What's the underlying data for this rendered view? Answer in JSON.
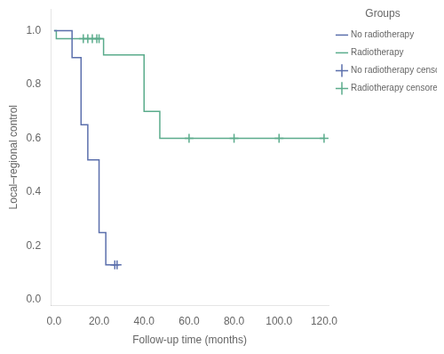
{
  "chart_data": {
    "type": "line",
    "xlabel": "Follow-up time (months)",
    "ylabel": "Local–regional control",
    "xlim": [
      -1.5,
      122
    ],
    "ylim": [
      -0.02,
      1.08
    ],
    "xticks": [
      {
        "value": 0.0,
        "label": "0.0"
      },
      {
        "value": 20.0,
        "label": "20.0"
      },
      {
        "value": 40.0,
        "label": "40.0"
      },
      {
        "value": 60.0,
        "label": "60.0"
      },
      {
        "value": 80.0,
        "label": "80.0"
      },
      {
        "value": 100.0,
        "label": "100.0"
      },
      {
        "value": 120.0,
        "label": "120.0"
      }
    ],
    "yticks": [
      {
        "value": 0.0,
        "label": "0.0"
      },
      0.2,
      0.4,
      0.6,
      0.8,
      {
        "value": 1.0,
        "label": "1.0"
      }
    ],
    "grid": false,
    "legend": "right",
    "legend_title": "Groups",
    "series": [
      {
        "name": "No radiotherapy",
        "type": "line",
        "line_style": "steps-post",
        "color": "#5b6fac",
        "x": [
          0,
          8,
          12,
          15,
          20,
          23,
          27
        ],
        "values": [
          1.0,
          0.9,
          0.65,
          0.52,
          0.25,
          0.13,
          0.13
        ]
      },
      {
        "name": "Radiotherapy",
        "type": "line",
        "line_style": "steps-post",
        "color": "#5bac8c",
        "x": [
          0,
          1,
          22,
          40,
          47,
          50,
          120
        ],
        "values": [
          1.0,
          0.97,
          0.91,
          0.7,
          0.6,
          0.6,
          0.6
        ]
      },
      {
        "name": "No radiotherapy censored",
        "type": "scatter",
        "marker": "+",
        "color": "#5b6fac",
        "x": [
          27,
          28
        ],
        "values": [
          0.13,
          0.13
        ]
      },
      {
        "name": "Radiotherapy censored",
        "type": "scatter",
        "marker": "+",
        "color": "#5bac8c",
        "x": [
          13,
          15,
          17,
          19,
          20,
          60,
          80,
          100,
          120
        ],
        "values": [
          0.97,
          0.97,
          0.97,
          0.97,
          0.97,
          0.6,
          0.6,
          0.6,
          0.6
        ]
      }
    ]
  }
}
